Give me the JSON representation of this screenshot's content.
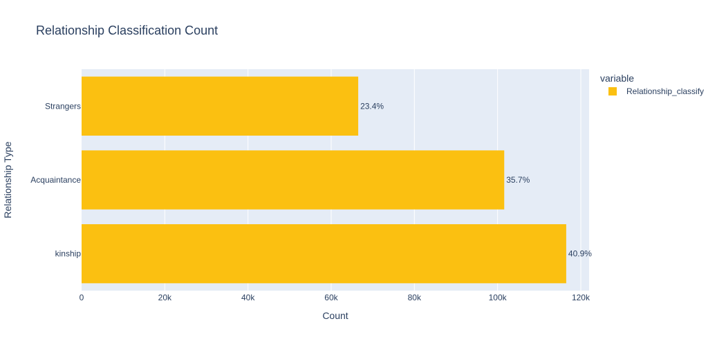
{
  "chart_data": {
    "type": "bar",
    "orientation": "horizontal",
    "title": "Relationship Classification Count",
    "xlabel": "Count",
    "ylabel": "Relationship Type",
    "categories": [
      "kinship",
      "Acquaintance",
      "Strangers"
    ],
    "series": [
      {
        "name": "Relationship_classify",
        "values": [
          116500,
          101600,
          66500
        ],
        "labels": [
          "40.9%",
          "35.7%",
          "23.4%"
        ],
        "color": "#FBC011"
      }
    ],
    "xlim": [
      0,
      122000
    ],
    "xticks": [
      0,
      20000,
      40000,
      60000,
      80000,
      100000,
      120000
    ],
    "xtick_labels": [
      "0",
      "20k",
      "40k",
      "60k",
      "80k",
      "100k",
      "120k"
    ],
    "grid": true,
    "legend": {
      "title": "variable",
      "placement": "top-right"
    },
    "colors": {
      "plot_background": "#E5ECF6",
      "grid": "#ffffff",
      "text": "#2a3f5f"
    }
  }
}
